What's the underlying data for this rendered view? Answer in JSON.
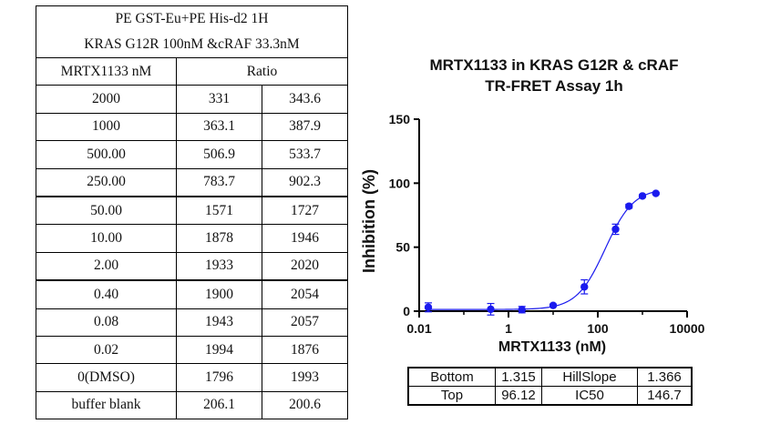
{
  "assay_table": {
    "title_line1": "PE GST-Eu+PE His-d2 1H",
    "title_line2": "KRAS G12R 100nM &cRAF 33.3nM",
    "col_header_conc": "MRTX1133 nM",
    "col_header_ratio": "Ratio",
    "rows": [
      {
        "conc": "2000",
        "r1": "331",
        "r2": "343.6"
      },
      {
        "conc": "1000",
        "r1": "363.1",
        "r2": "387.9"
      },
      {
        "conc": "500.00",
        "r1": "506.9",
        "r2": "533.7"
      },
      {
        "conc": "250.00",
        "r1": "783.7",
        "r2": "902.3"
      },
      {
        "conc": "50.00",
        "r1": "1571",
        "r2": "1727"
      },
      {
        "conc": "10.00",
        "r1": "1878",
        "r2": "1946"
      },
      {
        "conc": "2.00",
        "r1": "1933",
        "r2": "2020"
      },
      {
        "conc": "0.40",
        "r1": "1900",
        "r2": "2054"
      },
      {
        "conc": "0.08",
        "r1": "1943",
        "r2": "2057"
      },
      {
        "conc": "0.02",
        "r1": "1994",
        "r2": "1876"
      },
      {
        "conc": "0(DMSO)",
        "r1": "1796",
        "r2": "1993"
      },
      {
        "conc": "buffer blank",
        "r1": "206.1",
        "r2": "200.6"
      }
    ]
  },
  "chart_data": {
    "type": "scatter",
    "title_line1": "MRTX1133 in KRAS G12R & cRAF",
    "title_line2": "TR-FRET Assay 1h",
    "xlabel": "MRTX1133 (nM)",
    "ylabel": "Inhibition (%)",
    "xscale": "log",
    "xlim": [
      0.01,
      10000
    ],
    "ylim": [
      0,
      150
    ],
    "xticks": [
      0.01,
      1,
      100,
      10000
    ],
    "xtick_labels": [
      "0.01",
      "1",
      "100",
      "10000"
    ],
    "yticks": [
      0,
      50,
      100,
      150
    ],
    "ytick_labels": [
      "0",
      "50",
      "100",
      "150"
    ],
    "color": "#1a1aee",
    "points": [
      {
        "x": 0.016,
        "y": 3.0,
        "err": 3.5
      },
      {
        "x": 0.4,
        "y": 1.5,
        "err": 4.5
      },
      {
        "x": 2,
        "y": 1.2,
        "err": 2.5
      },
      {
        "x": 10,
        "y": 4.5,
        "err": 1.0
      },
      {
        "x": 50,
        "y": 19,
        "err": 5.5
      },
      {
        "x": 250,
        "y": 64,
        "err": 4.0
      },
      {
        "x": 500,
        "y": 82,
        "err": 1.5
      },
      {
        "x": 1000,
        "y": 90,
        "err": 1.0
      },
      {
        "x": 2000,
        "y": 92,
        "err": 0.8
      }
    ],
    "fit": {
      "bottom": 1.315,
      "top": 96.12,
      "ic50": 146.7,
      "hillslope": 1.366
    }
  },
  "params_table": {
    "bottom_label": "Bottom",
    "bottom_value": "1.315",
    "hill_label": "HillSlope",
    "hill_value": "1.366",
    "top_label": "Top",
    "top_value": "96.12",
    "ic50_label": "IC50",
    "ic50_value": "146.7"
  }
}
